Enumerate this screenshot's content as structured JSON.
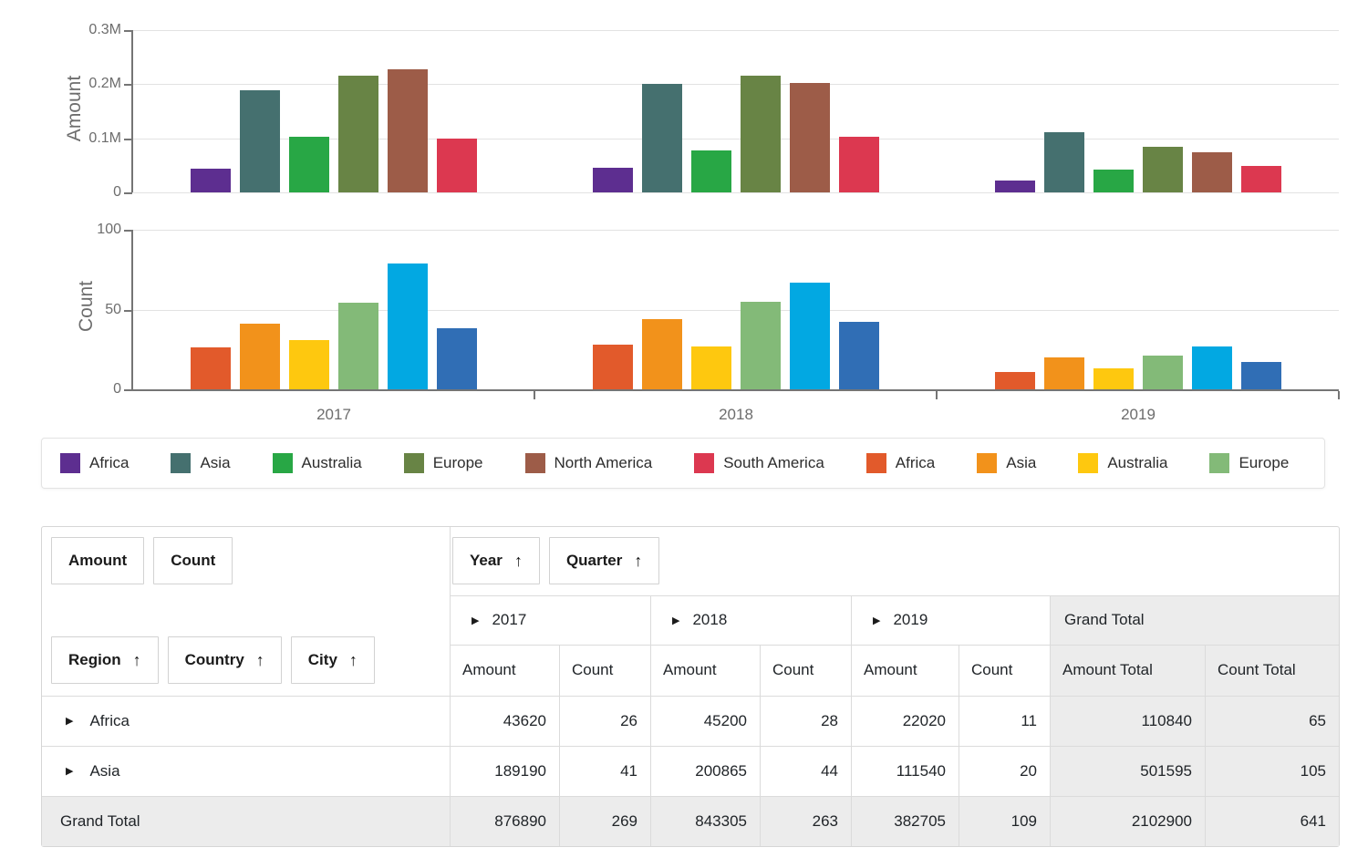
{
  "colors": {
    "grid": "#E2E2E2",
    "axis": "#757575",
    "tick_text": "#6D6D6D",
    "table_border": "#DBDBDB",
    "total_bg": "#ECECEC",
    "text": "#212529",
    "button_border": "#D2D2D2",
    "legend_border": "#E3E3E3"
  },
  "chart_data": {
    "amount": {
      "type": "bar",
      "ylabel": "Amount",
      "ymax": 300000,
      "yticks": [
        {
          "label": "0.3M",
          "value": 300000
        },
        {
          "label": "0.2M",
          "value": 200000
        },
        {
          "label": "0.1M",
          "value": 100000
        },
        {
          "label": "0",
          "value": 0
        }
      ],
      "categories": [
        "2017",
        "2018",
        "2019"
      ],
      "grid": true,
      "legend_position": "bottom",
      "series": [
        {
          "name": "Africa",
          "color": "#5D2E90",
          "values": [
            43620,
            45200,
            22020
          ]
        },
        {
          "name": "Asia",
          "color": "#45706F",
          "values": [
            189190,
            200865,
            111540
          ]
        },
        {
          "name": "Australia",
          "color": "#28A745",
          "values": [
            102500,
            77000,
            42000
          ]
        },
        {
          "name": "Europe",
          "color": "#688445",
          "values": [
            215000,
            215000,
            85000
          ]
        },
        {
          "name": "North America",
          "color": "#9D5C48",
          "values": [
            227000,
            203000,
            73500
          ]
        },
        {
          "name": "South America",
          "color": "#DC3850",
          "values": [
            99580,
            102240,
            48645
          ]
        }
      ]
    },
    "count": {
      "type": "bar",
      "ylabel": "Count",
      "ymax": 100,
      "yticks": [
        {
          "label": "100",
          "value": 100
        },
        {
          "label": "50",
          "value": 50
        },
        {
          "label": "0",
          "value": 0
        }
      ],
      "categories": [
        "2017",
        "2018",
        "2019"
      ],
      "grid": true,
      "legend_position": "bottom",
      "series": [
        {
          "name": "Africa",
          "color": "#E25A2B",
          "values": [
            26,
            28,
            11
          ]
        },
        {
          "name": "Asia",
          "color": "#F2921B",
          "values": [
            41,
            44,
            20
          ]
        },
        {
          "name": "Australia",
          "color": "#FEC80F",
          "values": [
            31,
            27,
            13
          ]
        },
        {
          "name": "Europe",
          "color": "#83BA78",
          "values": [
            54,
            55,
            21
          ]
        },
        {
          "name": "North America",
          "color": "#02A8E2",
          "values": [
            79,
            67,
            27
          ]
        },
        {
          "name": "South America",
          "color": "#306EB5",
          "values": [
            38,
            42,
            17
          ]
        }
      ]
    }
  },
  "legend": {
    "items": [
      {
        "label": "Africa",
        "color": "#5D2E90"
      },
      {
        "label": "Asia",
        "color": "#45706F"
      },
      {
        "label": "Australia",
        "color": "#28A745"
      },
      {
        "label": "Europe",
        "color": "#688445"
      },
      {
        "label": "North America",
        "color": "#9D5C48"
      },
      {
        "label": "South America",
        "color": "#DC3850"
      },
      {
        "label": "Africa",
        "color": "#E25A2B"
      },
      {
        "label": "Asia",
        "color": "#F2921B"
      },
      {
        "label": "Australia",
        "color": "#FEC80F"
      },
      {
        "label": "Europe",
        "color": "#83BA78"
      }
    ]
  },
  "pivot": {
    "sort_icon": "↑",
    "expand_icon": "▶",
    "value_fields": [
      "Amount",
      "Count"
    ],
    "column_fields": [
      "Year",
      "Quarter"
    ],
    "row_fields": [
      "Region",
      "Country",
      "City"
    ],
    "column_headers": [
      {
        "label": "2017",
        "expandable": true
      },
      {
        "label": "2018",
        "expandable": true
      },
      {
        "label": "2019",
        "expandable": true
      },
      {
        "label": "Grand Total",
        "expandable": false
      }
    ],
    "subheaders": [
      "Amount",
      "Count",
      "Amount",
      "Count",
      "Amount",
      "Count",
      "Amount Total",
      "Count Total"
    ],
    "rows": [
      {
        "label": "Africa",
        "expandable": true,
        "total": false,
        "values": [
          "43620",
          "26",
          "45200",
          "28",
          "22020",
          "11",
          "110840",
          "65"
        ]
      },
      {
        "label": "Asia",
        "expandable": true,
        "total": false,
        "values": [
          "189190",
          "41",
          "200865",
          "44",
          "111540",
          "20",
          "501595",
          "105"
        ]
      },
      {
        "label": "Grand Total",
        "expandable": false,
        "total": true,
        "values": [
          "876890",
          "269",
          "843305",
          "263",
          "382705",
          "109",
          "2102900",
          "641"
        ]
      }
    ]
  }
}
